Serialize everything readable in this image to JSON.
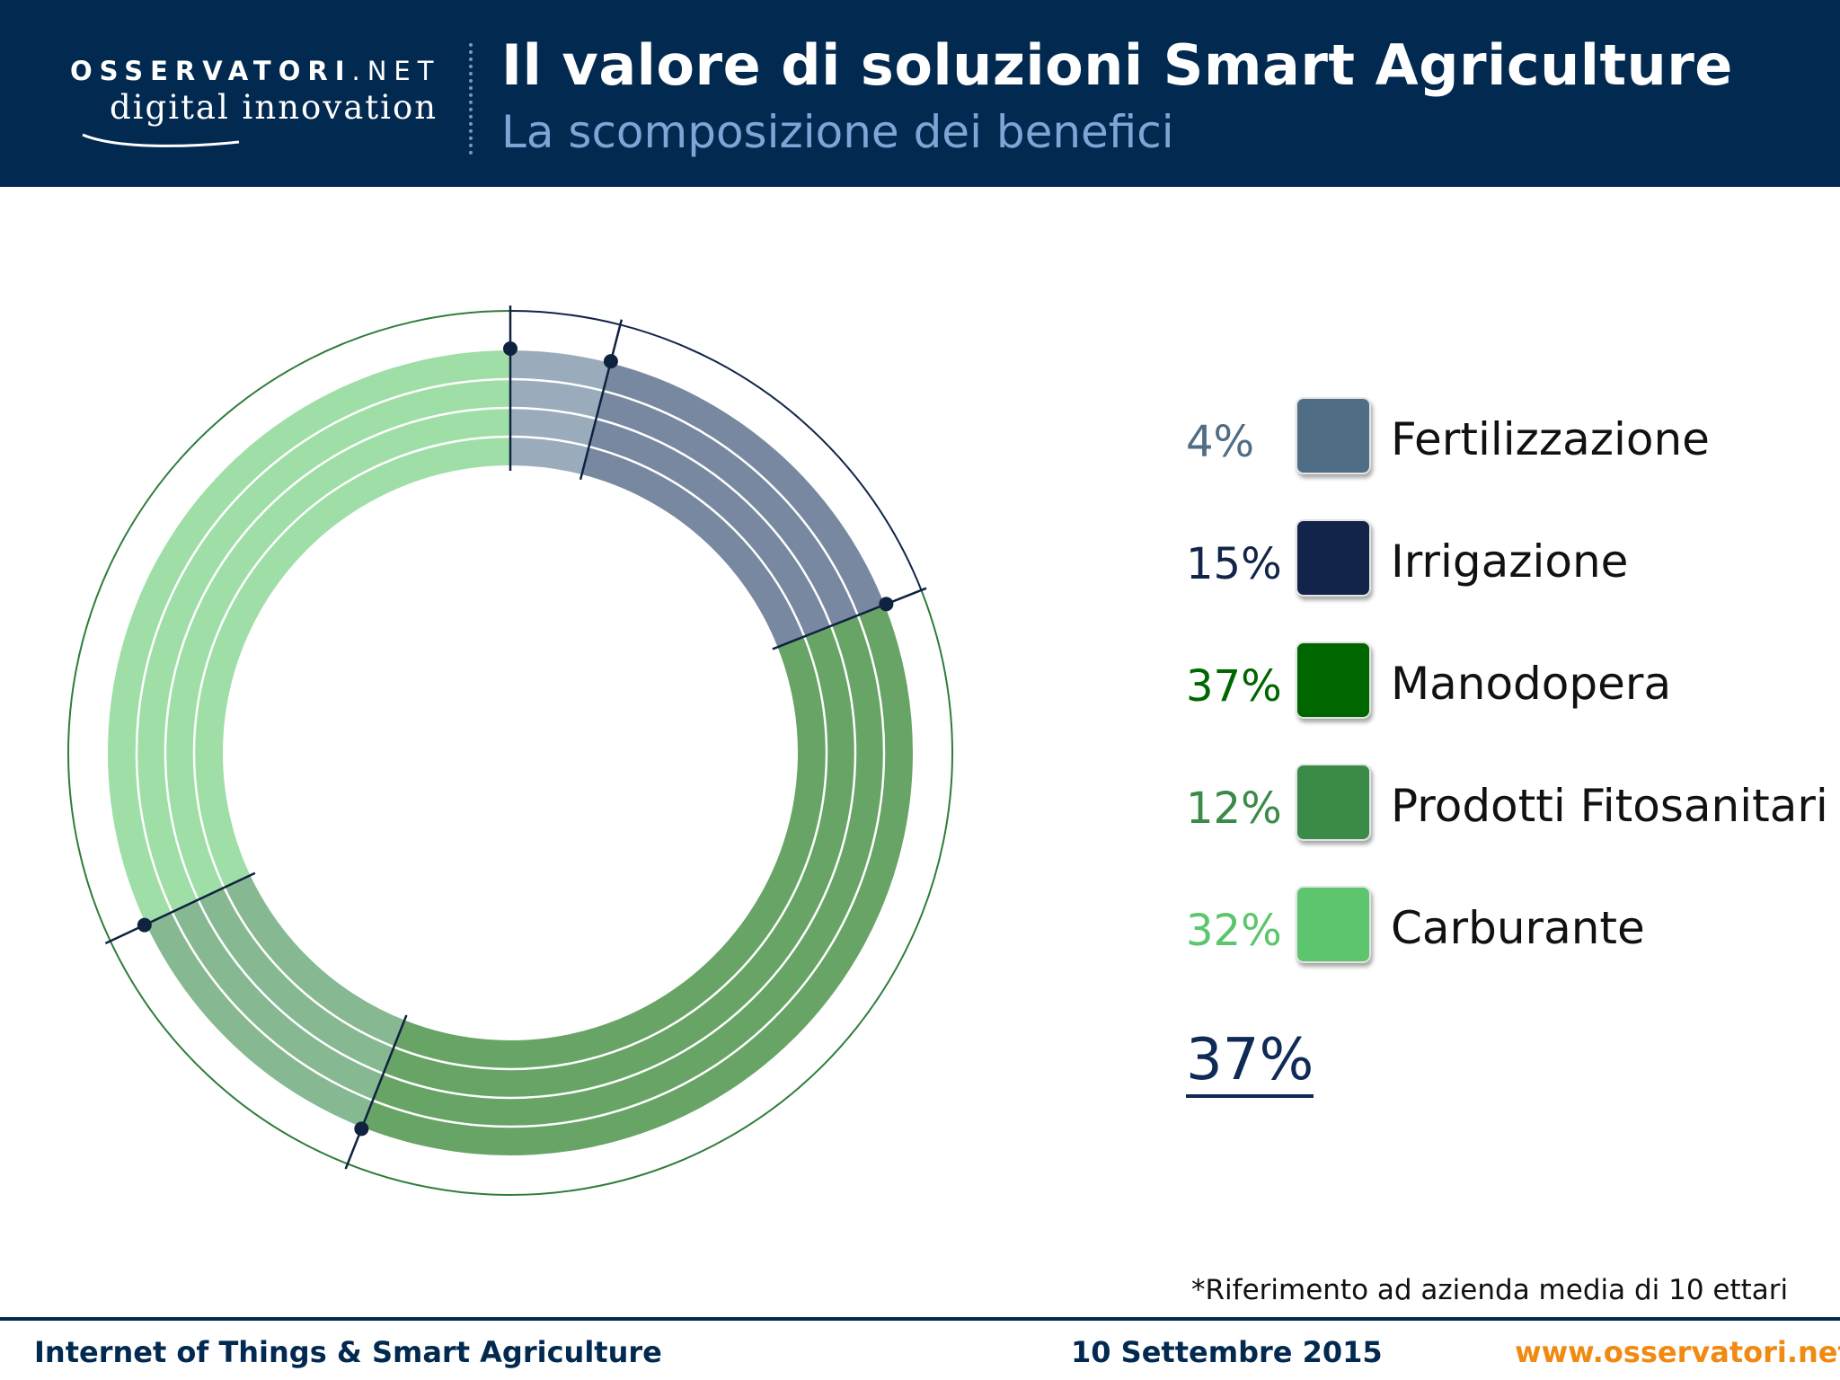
{
  "header": {
    "logo_top": "OSSERVATORI",
    "logo_net": ".NET",
    "logo_bottom": "digital innovation",
    "title": "Il valore di soluzioni Smart Agriculture",
    "subtitle": "La scomposizione dei benefici"
  },
  "chart_data": {
    "type": "pie",
    "variant": "donut",
    "start_angle": "12 o'clock",
    "direction": "clockwise",
    "categories": [
      "Fertilizzazione",
      "Irrigazione",
      "Manodopera",
      "Prodotti Fitosanitari",
      "Carburante"
    ],
    "values": [
      4,
      15,
      37,
      12,
      32
    ],
    "value_labels": [
      "4%",
      "15%",
      "37%",
      "12%",
      "32%"
    ],
    "colors": [
      "#4f6d84",
      "#12244a",
      "#006600",
      "#3a8a48",
      "#5cc56d"
    ],
    "ring_colors": [
      "#9aacbb",
      "#7788a0",
      "#67a466",
      "#86b992",
      "#9fdea7"
    ],
    "outer_arc_colors": [
      "#12244a",
      "#12244a",
      "#2f7d3c",
      "#2f7d3c",
      "#2f7d3c"
    ],
    "highlighted_value": "37%",
    "legend": "right"
  },
  "footnote": "*Riferimento ad azienda media di 10 ettari",
  "footer": {
    "left": "Internet of Things & Smart Agriculture",
    "date": "10 Settembre 2015",
    "url": "www.osservatori.net"
  }
}
